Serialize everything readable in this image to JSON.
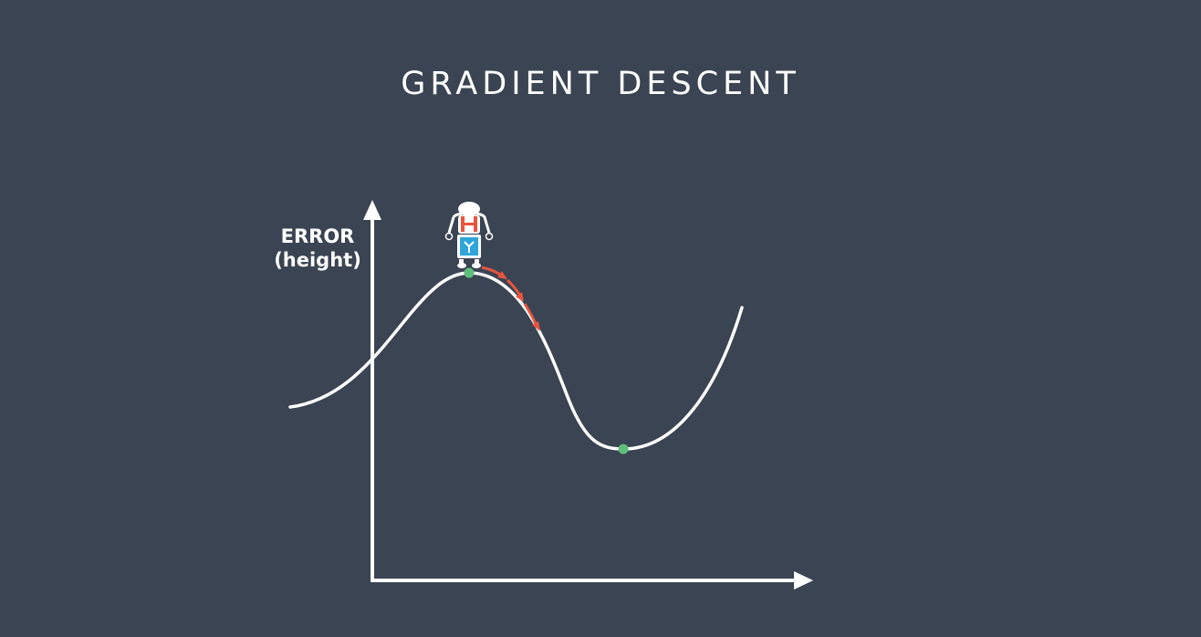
{
  "title": "GRADIENT DESCENT",
  "y_axis": {
    "line1": "ERROR",
    "line2": "(height)"
  },
  "colors": {
    "background": "#3a4452",
    "foreground": "#ffffff",
    "arrow": "#e8553e",
    "point": "#5fbf7a"
  },
  "icons": {
    "robot": "robot-hiker-icon"
  }
}
